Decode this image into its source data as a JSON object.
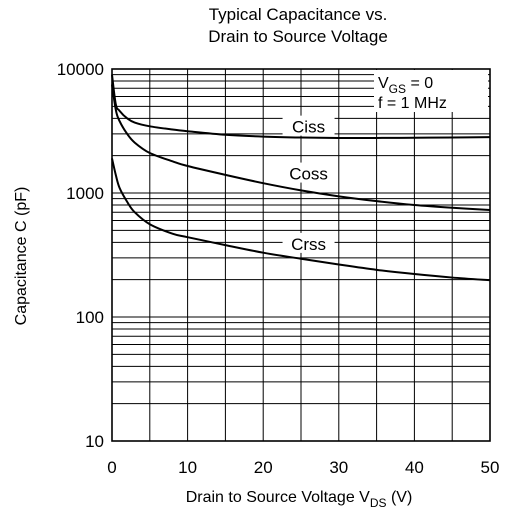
{
  "chart_data": {
    "type": "line",
    "title_lines": [
      "Typical Capacitance vs.",
      "Drain to Source Voltage"
    ],
    "xlabel": {
      "prefix": "Drain to Source Voltage  V",
      "sub": "DS",
      "suffix": "  (V)"
    },
    "ylabel": "Capacitance  C  (pF)",
    "x_scale": "linear",
    "y_scale": "log",
    "xlim": [
      0,
      50
    ],
    "ylim": [
      10,
      10000
    ],
    "x_ticks": [
      0,
      10,
      20,
      30,
      40,
      50
    ],
    "x_minor_step": 5,
    "y_ticks": [
      10,
      100,
      1000,
      10000
    ],
    "grid": true,
    "conditions": {
      "vgs": {
        "prefix": "V",
        "sub": "GS",
        "suffix": " = 0"
      },
      "freq": "f = 1 MHz"
    },
    "series": [
      {
        "name": "Ciss",
        "x": [
          0,
          0.5,
          1,
          2,
          3,
          5,
          8,
          10,
          15,
          20,
          25,
          30,
          35,
          40,
          45,
          50
        ],
        "y": [
          9000,
          5200,
          4600,
          4000,
          3700,
          3450,
          3250,
          3150,
          2950,
          2850,
          2800,
          2780,
          2780,
          2790,
          2800,
          2820
        ]
      },
      {
        "name": "Coss",
        "x": [
          0,
          0.5,
          1,
          2,
          3,
          5,
          8,
          10,
          15,
          20,
          25,
          30,
          35,
          40,
          45,
          50
        ],
        "y": [
          7500,
          4700,
          3800,
          3000,
          2550,
          2100,
          1800,
          1650,
          1400,
          1200,
          1050,
          940,
          860,
          800,
          760,
          730
        ]
      },
      {
        "name": "Crss",
        "x": [
          0,
          0.5,
          1,
          2,
          3,
          5,
          8,
          10,
          15,
          20,
          25,
          30,
          35,
          40,
          45,
          50
        ],
        "y": [
          1900,
          1400,
          1100,
          850,
          700,
          560,
          470,
          440,
          380,
          330,
          295,
          265,
          240,
          222,
          208,
          198
        ]
      }
    ]
  }
}
